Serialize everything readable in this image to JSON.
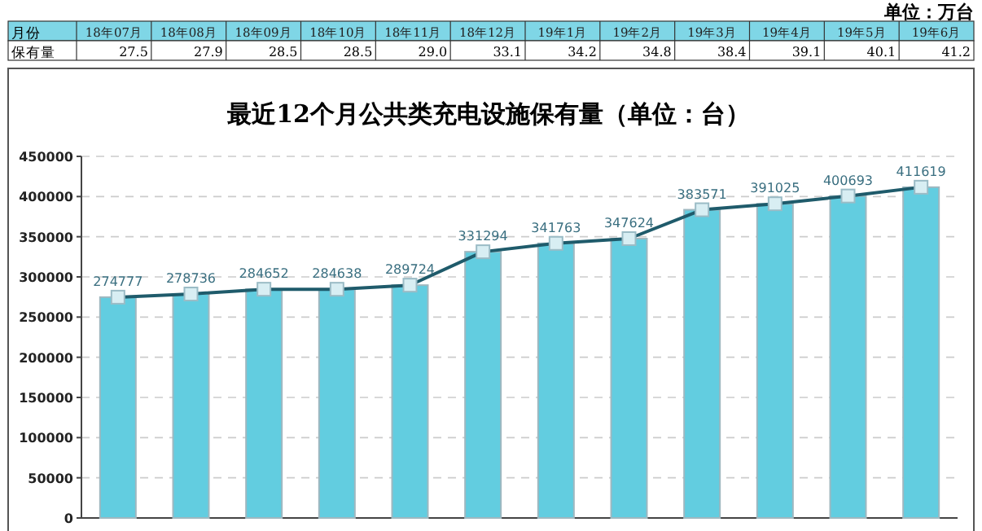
{
  "chart_data": [
    {
      "type": "other",
      "title": "单位：万台",
      "xlabel": "月份",
      "categories": [
        "18年07月",
        "18年08月",
        "18年09月",
        "18年10月",
        "18年11月",
        "18年12月",
        "19年1月",
        "19年2月",
        "19年3月",
        "19年4月",
        "19年5月",
        "19年6月"
      ],
      "series": [
        {
          "name": "保有量",
          "values": [
            27.5,
            27.9,
            28.5,
            28.5,
            29.0,
            33.1,
            34.2,
            34.8,
            38.4,
            39.1,
            40.1,
            41.2
          ],
          "value_labels": [
            "27.5",
            "27.9",
            "28.5",
            "28.5",
            "29.0",
            "33.1",
            "34.2",
            "34.8",
            "38.4",
            "39.1",
            "40.1",
            "41.2"
          ]
        }
      ]
    },
    {
      "type": "bar",
      "title": "最近12个月公共类充电设施保有量（单位：台）",
      "categories": [
        null,
        null,
        null,
        null,
        null,
        null,
        null,
        null,
        null,
        null,
        null,
        null
      ],
      "series": [
        {
          "type": "bar",
          "color": "#62cde0",
          "values": [
            274777,
            278736,
            284652,
            284638,
            289724,
            331294,
            341763,
            347624,
            383571,
            391025,
            400693,
            411619
          ]
        },
        {
          "type": "line",
          "color": "#1f5b6b",
          "marker": "square",
          "values": [
            274777,
            278736,
            284652,
            284638,
            289724,
            331294,
            341763,
            347624,
            383571,
            391025,
            400693,
            411619
          ],
          "value_labels": [
            "274777",
            "278736",
            "284652",
            "284638",
            "289724",
            "331294",
            "341763",
            "347624",
            "383571",
            "391025",
            "400693",
            "411619"
          ]
        }
      ],
      "ylim": [
        0,
        450000
      ],
      "yticks": [
        0,
        50000,
        100000,
        150000,
        200000,
        250000,
        300000,
        350000,
        400000,
        450000
      ],
      "grid": "y"
    }
  ]
}
